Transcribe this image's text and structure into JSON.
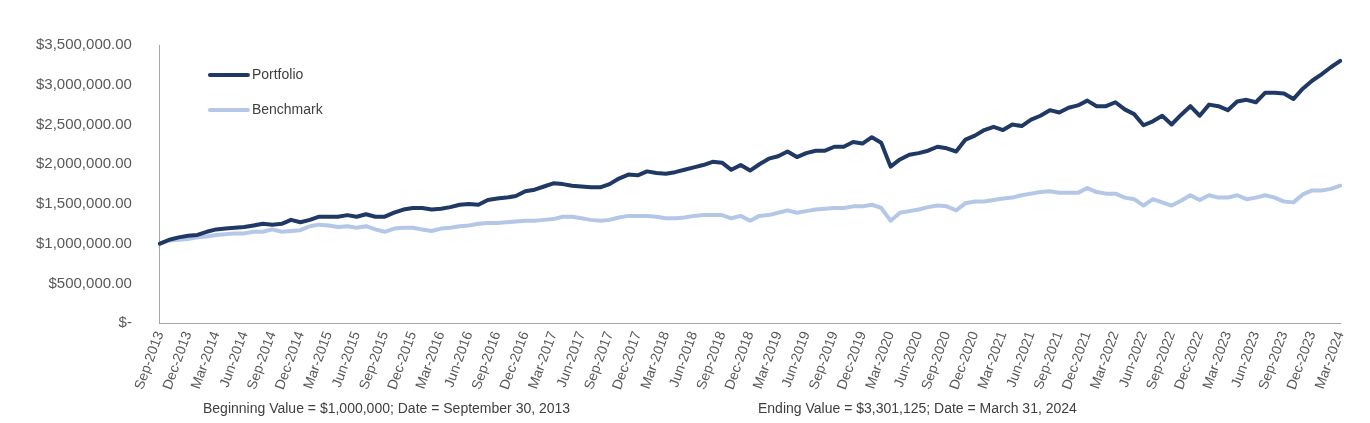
{
  "chart_data": {
    "type": "line",
    "categories": [
      "Sep-2013",
      null,
      null,
      "Dec-2013",
      null,
      null,
      "Mar-2014",
      null,
      null,
      "Jun-2014",
      null,
      null,
      "Sep-2014",
      null,
      null,
      "Dec-2014",
      null,
      null,
      "Mar-2015",
      null,
      null,
      "Jun-2015",
      null,
      null,
      "Sep-2015",
      null,
      null,
      "Dec-2015",
      null,
      null,
      "Mar-2016",
      null,
      null,
      "Jun-2016",
      null,
      null,
      "Sep-2016",
      null,
      null,
      "Dec-2016",
      null,
      null,
      "Mar-2017",
      null,
      null,
      "Jun-2017",
      null,
      null,
      "Sep-2017",
      null,
      null,
      "Dec-2017",
      null,
      null,
      "Mar-2018",
      null,
      null,
      "Jun-2018",
      null,
      null,
      "Sep-2018",
      null,
      null,
      "Dec-2018",
      null,
      null,
      "Mar-2019",
      null,
      null,
      "Jun-2019",
      null,
      null,
      "Sep-2019",
      null,
      null,
      "Dec-2019",
      null,
      null,
      "Mar-2020",
      null,
      null,
      "Jun-2020",
      null,
      null,
      "Sep-2020",
      null,
      null,
      "Dec-2020",
      null,
      null,
      "Mar-2021",
      null,
      null,
      "Jun-2021",
      null,
      null,
      "Sep-2021",
      null,
      null,
      "Dec-2021",
      null,
      null,
      "Mar-2022",
      null,
      null,
      "Jun-2022",
      null,
      null,
      "Sep-2022",
      null,
      null,
      "Dec-2022",
      null,
      null,
      "Mar-2023",
      null,
      null,
      "Jun-2023",
      null,
      null,
      "Sep-2023",
      null,
      null,
      "Dec-2023",
      null,
      null,
      "Mar-2024"
    ],
    "series": [
      {
        "name": "Portfolio",
        "color": "#1f3864",
        "values": [
          1000000,
          1050000,
          1080000,
          1100000,
          1110000,
          1150000,
          1180000,
          1190000,
          1200000,
          1210000,
          1230000,
          1250000,
          1240000,
          1250000,
          1300000,
          1270000,
          1300000,
          1340000,
          1340000,
          1340000,
          1360000,
          1340000,
          1370000,
          1340000,
          1340000,
          1390000,
          1430000,
          1450000,
          1450000,
          1430000,
          1440000,
          1460000,
          1490000,
          1500000,
          1490000,
          1550000,
          1570000,
          1580000,
          1600000,
          1660000,
          1680000,
          1720000,
          1760000,
          1750000,
          1730000,
          1720000,
          1710000,
          1710000,
          1750000,
          1820000,
          1870000,
          1860000,
          1910000,
          1890000,
          1880000,
          1900000,
          1930000,
          1960000,
          1990000,
          2030000,
          2020000,
          1930000,
          1990000,
          1920000,
          2000000,
          2070000,
          2100000,
          2160000,
          2090000,
          2140000,
          2170000,
          2170000,
          2220000,
          2220000,
          2280000,
          2260000,
          2340000,
          2270000,
          1970000,
          2060000,
          2120000,
          2140000,
          2170000,
          2220000,
          2200000,
          2160000,
          2310000,
          2360000,
          2430000,
          2470000,
          2430000,
          2500000,
          2480000,
          2560000,
          2610000,
          2680000,
          2650000,
          2710000,
          2740000,
          2800000,
          2730000,
          2730000,
          2780000,
          2690000,
          2630000,
          2490000,
          2540000,
          2610000,
          2500000,
          2620000,
          2730000,
          2610000,
          2750000,
          2730000,
          2680000,
          2790000,
          2810000,
          2780000,
          2900000,
          2900000,
          2890000,
          2820000,
          2950000,
          3050000,
          3130000,
          3220000,
          3301125
        ]
      },
      {
        "name": "Benchmark",
        "color": "#b4c7e7",
        "values": [
          1000000,
          1040000,
          1050000,
          1060000,
          1080000,
          1090000,
          1110000,
          1120000,
          1130000,
          1130000,
          1150000,
          1150000,
          1180000,
          1150000,
          1160000,
          1170000,
          1220000,
          1240000,
          1230000,
          1210000,
          1220000,
          1200000,
          1220000,
          1180000,
          1150000,
          1190000,
          1200000,
          1200000,
          1180000,
          1160000,
          1190000,
          1200000,
          1220000,
          1230000,
          1250000,
          1260000,
          1260000,
          1270000,
          1280000,
          1290000,
          1290000,
          1300000,
          1310000,
          1340000,
          1340000,
          1320000,
          1300000,
          1290000,
          1300000,
          1330000,
          1350000,
          1350000,
          1350000,
          1340000,
          1320000,
          1320000,
          1330000,
          1350000,
          1360000,
          1360000,
          1360000,
          1320000,
          1350000,
          1290000,
          1350000,
          1360000,
          1390000,
          1420000,
          1390000,
          1410000,
          1430000,
          1440000,
          1450000,
          1450000,
          1470000,
          1470000,
          1490000,
          1450000,
          1290000,
          1390000,
          1410000,
          1430000,
          1460000,
          1480000,
          1470000,
          1420000,
          1510000,
          1530000,
          1530000,
          1550000,
          1570000,
          1580000,
          1610000,
          1630000,
          1650000,
          1660000,
          1640000,
          1640000,
          1640000,
          1700000,
          1650000,
          1630000,
          1630000,
          1580000,
          1560000,
          1480000,
          1560000,
          1520000,
          1480000,
          1540000,
          1610000,
          1550000,
          1610000,
          1580000,
          1580000,
          1610000,
          1560000,
          1580000,
          1610000,
          1580000,
          1530000,
          1520000,
          1620000,
          1670000,
          1670000,
          1690000,
          1730000
        ]
      }
    ],
    "ylim": [
      0,
      3500000
    ],
    "yticks": [
      {
        "value": 0,
        "label": "$-"
      },
      {
        "value": 500000,
        "label": "$500,000.00"
      },
      {
        "value": 1000000,
        "label": "$1,000,000.00"
      },
      {
        "value": 1500000,
        "label": "$1,500,000.00"
      },
      {
        "value": 2000000,
        "label": "$2,000,000.00"
      },
      {
        "value": 2500000,
        "label": "$2,500,000.00"
      },
      {
        "value": 3000000,
        "label": "$3,000,000.00"
      },
      {
        "value": 3500000,
        "label": "$3,500,000.00"
      }
    ],
    "grid": false,
    "legend": "top left",
    "marker": "none",
    "line_style": "solid",
    "annotations": [
      "Beginning Value = $1,000,000; Date = September 30, 2013",
      "Ending Value = $3,301,125;  Date = March 31, 2024"
    ]
  }
}
